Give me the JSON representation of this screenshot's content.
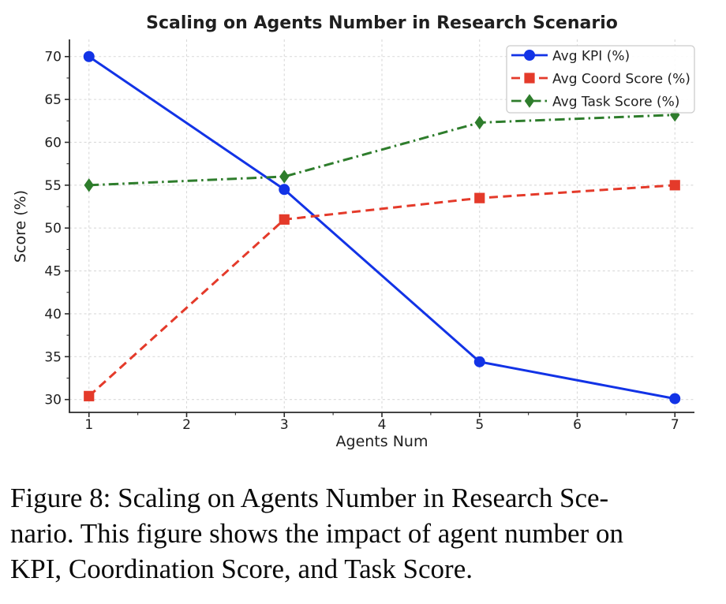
{
  "page": {
    "background": "#ffffff"
  },
  "chart_data": {
    "type": "line",
    "title": "Scaling on Agents Number in Research Scenario",
    "xlabel": "Agents Num",
    "ylabel": "Score (%)",
    "x": [
      1,
      3,
      5,
      7
    ],
    "series": [
      {
        "name": "Avg KPI (%)",
        "values": [
          70.0,
          54.5,
          34.4,
          30.1
        ],
        "color": "#1233e6",
        "marker": "circle",
        "linestyle": "solid"
      },
      {
        "name": "Avg Coord Score (%)",
        "values": [
          30.4,
          51.0,
          53.5,
          55.0
        ],
        "color": "#e43a2a",
        "marker": "square",
        "linestyle": "dashed"
      },
      {
        "name": "Avg Task Score (%)",
        "values": [
          55.0,
          56.0,
          62.3,
          63.2
        ],
        "color": "#2e7d2c",
        "marker": "diamond",
        "linestyle": "dashdot"
      }
    ],
    "xticks": [
      1,
      2,
      3,
      4,
      5,
      6,
      7
    ],
    "yticks": [
      30,
      35,
      40,
      45,
      50,
      55,
      60,
      65,
      70
    ],
    "xminorticks": [
      1.5,
      2.5,
      3.5,
      4.5,
      5.5,
      6.5
    ],
    "yminorticks": [
      32.5,
      37.5,
      42.5,
      47.5,
      52.5,
      57.5,
      62.5,
      67.5
    ],
    "xlim": [
      0.8,
      7.2
    ],
    "ylim": [
      28.5,
      72.0
    ],
    "grid": true,
    "grid_color": "#d9d9d9",
    "axis_color": "#2a2a2a",
    "text_color": "#1f1f1f",
    "legend_position": "top-right",
    "legend_border_color": "#cccccc",
    "legend_bg_color": "#ffffff"
  },
  "caption": {
    "lines": [
      "Figure 8: Scaling on Agents Number in Research Sce-",
      "nario. This figure shows the impact of agent number on",
      "KPI, Coordination Score, and Task Score."
    ]
  }
}
